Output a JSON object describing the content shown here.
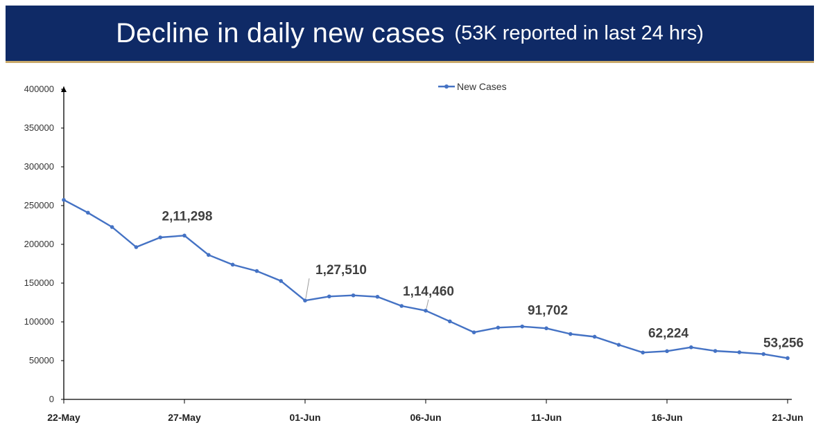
{
  "header": {
    "title": "Decline in daily new cases",
    "subtitle": "(53K reported in last 24 hrs)"
  },
  "colors": {
    "title_bg": "#0f2a66",
    "title_rule": "#c9a96a",
    "series_line": "#4472c4",
    "label_text": "#404040"
  },
  "chart_data": {
    "type": "line",
    "title": "Decline in daily new cases (53K reported in last 24 hrs)",
    "x": [
      "22-May",
      "23-May",
      "24-May",
      "25-May",
      "26-May",
      "27-May",
      "28-May",
      "29-May",
      "30-May",
      "31-May",
      "01-Jun",
      "02-Jun",
      "03-Jun",
      "04-Jun",
      "05-Jun",
      "06-Jun",
      "07-Jun",
      "08-Jun",
      "09-Jun",
      "10-Jun",
      "11-Jun",
      "12-Jun",
      "13-Jun",
      "14-Jun",
      "15-Jun",
      "16-Jun",
      "17-Jun",
      "18-Jun",
      "19-Jun",
      "20-Jun",
      "21-Jun"
    ],
    "x_ticks": [
      "22-May",
      "27-May",
      "01-Jun",
      "06-Jun",
      "11-Jun",
      "16-Jun",
      "21-Jun"
    ],
    "series": [
      {
        "name": "New Cases",
        "values": [
          257299,
          240842,
          222315,
          196427,
          208921,
          211298,
          186364,
          173790,
          165553,
          152734,
          127510,
          132788,
          134154,
          132364,
          120529,
          114460,
          100636,
          86498,
          92596,
          94052,
          91702,
          84332,
          80834,
          70421,
          60471,
          62224,
          67208,
          62480,
          60753,
          58419,
          53256
        ]
      }
    ],
    "data_labels": [
      {
        "index": 5,
        "text": "2,11,298"
      },
      {
        "index": 10,
        "text": "1,27,510"
      },
      {
        "index": 15,
        "text": "1,14,460"
      },
      {
        "index": 20,
        "text": "91,702"
      },
      {
        "index": 25,
        "text": "62,224"
      },
      {
        "index": 30,
        "text": "53,256"
      }
    ],
    "y_ticks": [
      "0",
      "50000",
      "100000",
      "150000",
      "200000",
      "250000",
      "300000",
      "350000",
      "400000"
    ],
    "ylim": [
      0,
      400000
    ],
    "xlabel": "",
    "ylabel": "",
    "legend_position": "top-center",
    "grid": false
  }
}
